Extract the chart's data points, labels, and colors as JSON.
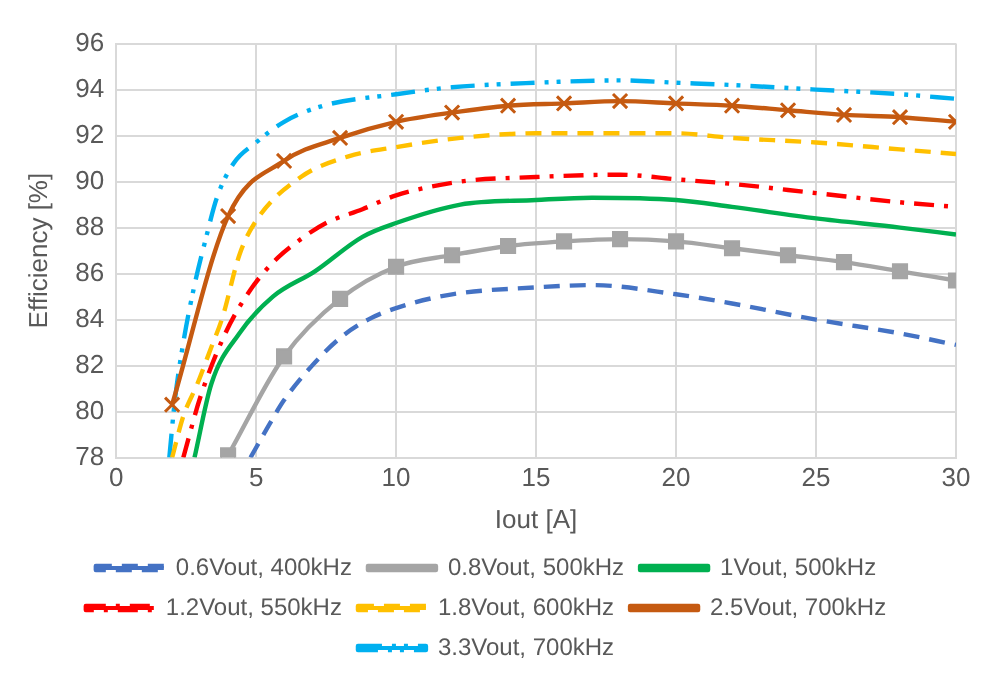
{
  "chart_data": {
    "type": "line",
    "xlabel": "Iout [A]",
    "ylabel": "Efficiency [%]",
    "xlim": [
      0,
      30
    ],
    "xticks": [
      0,
      5,
      10,
      15,
      20,
      25,
      30
    ],
    "ylim": [
      78,
      96
    ],
    "yticks": [
      78,
      80,
      82,
      84,
      86,
      88,
      90,
      92,
      94,
      96
    ],
    "grid": true,
    "legend": "bottom",
    "series": [
      {
        "name": "0.6Vout, 400kHz",
        "color": "#4472c4",
        "line_style": "dashed",
        "marker": "none",
        "x": [
          4.8,
          5.5,
          6,
          7,
          8,
          9,
          10,
          12,
          15,
          17,
          20,
          22,
          25,
          28,
          30
        ],
        "values": [
          78,
          79.5,
          80.5,
          82,
          83.2,
          84,
          84.5,
          85.1,
          85.4,
          85.5,
          85.1,
          84.7,
          84,
          83.4,
          82.9
        ]
      },
      {
        "name": "0.8Vout, 500kHz",
        "color": "#a5a5a5",
        "line_style": "solid",
        "marker": "square",
        "x": [
          4,
          6,
          8,
          10,
          12,
          14,
          16,
          18,
          20,
          22,
          24,
          26,
          28,
          30
        ],
        "values": [
          78.1,
          82.4,
          84.9,
          86.3,
          86.8,
          87.2,
          87.4,
          87.5,
          87.4,
          87.1,
          86.8,
          86.5,
          86.1,
          85.7
        ]
      },
      {
        "name": "1Vout, 500kHz",
        "color": "#00b050",
        "line_style": "solid",
        "marker": "none",
        "x": [
          2.8,
          3.4,
          4.4,
          5.6,
          7.1,
          8.8,
          10,
          12.3,
          15,
          17,
          20,
          22,
          25,
          28,
          30
        ],
        "values": [
          78,
          81.2,
          83.4,
          85,
          86.1,
          87.6,
          88.2,
          89,
          89.2,
          89.3,
          89.2,
          88.9,
          88.4,
          88,
          87.7
        ]
      },
      {
        "name": "1.2Vout, 550kHz",
        "color": "#ff0000",
        "line_style": "dashdot",
        "marker": "none",
        "x": [
          2.4,
          3,
          3.9,
          4.8,
          5.7,
          6.6,
          7.5,
          8.8,
          10,
          12.3,
          15,
          18,
          20,
          22,
          25,
          28,
          30
        ],
        "values": [
          78,
          80.6,
          83.4,
          85.3,
          86.6,
          87.5,
          88.2,
          88.8,
          89.4,
          90,
          90.2,
          90.3,
          90.1,
          89.9,
          89.5,
          89.1,
          88.9
        ]
      },
      {
        "name": "1.8Vout, 600kHz",
        "color": "#ffc000",
        "line_style": "dashed",
        "marker": "none",
        "x": [
          2,
          2.4,
          2.9,
          3.4,
          3.8,
          4.4,
          5,
          6.6,
          8.3,
          10,
          12.3,
          15,
          18,
          20,
          22,
          25,
          28,
          30
        ],
        "values": [
          78,
          79.8,
          81.2,
          82.8,
          84.1,
          86.8,
          88.3,
          90.2,
          91.1,
          91.5,
          91.9,
          92.1,
          92.1,
          92.1,
          91.9,
          91.7,
          91.4,
          91.2
        ]
      },
      {
        "name": "2.5Vout, 700kHz",
        "color": "#c55a11",
        "line_style": "solid",
        "marker": "cross",
        "x": [
          2,
          4,
          6,
          8,
          10,
          12,
          14,
          16,
          18,
          20,
          22,
          24,
          26,
          28,
          30
        ],
        "values": [
          80.3,
          88.5,
          90.9,
          91.9,
          92.6,
          93,
          93.3,
          93.4,
          93.5,
          93.4,
          93.3,
          93.1,
          92.9,
          92.8,
          92.6
        ]
      },
      {
        "name": "3.3Vout, 700kHz",
        "color": "#00b0f0",
        "line_style": "dashdotdot",
        "marker": "none",
        "x": [
          1.9,
          2.1,
          2.4,
          2.8,
          3.2,
          3.6,
          4.2,
          5,
          6,
          7.4,
          10,
          12,
          15,
          18,
          20,
          22,
          25,
          28,
          30
        ],
        "values": [
          78,
          80.5,
          83,
          85.5,
          87.5,
          89.3,
          90.8,
          91.7,
          92.6,
          93.3,
          93.8,
          94.1,
          94.3,
          94.4,
          94.3,
          94.2,
          94,
          93.8,
          93.6
        ]
      }
    ]
  }
}
